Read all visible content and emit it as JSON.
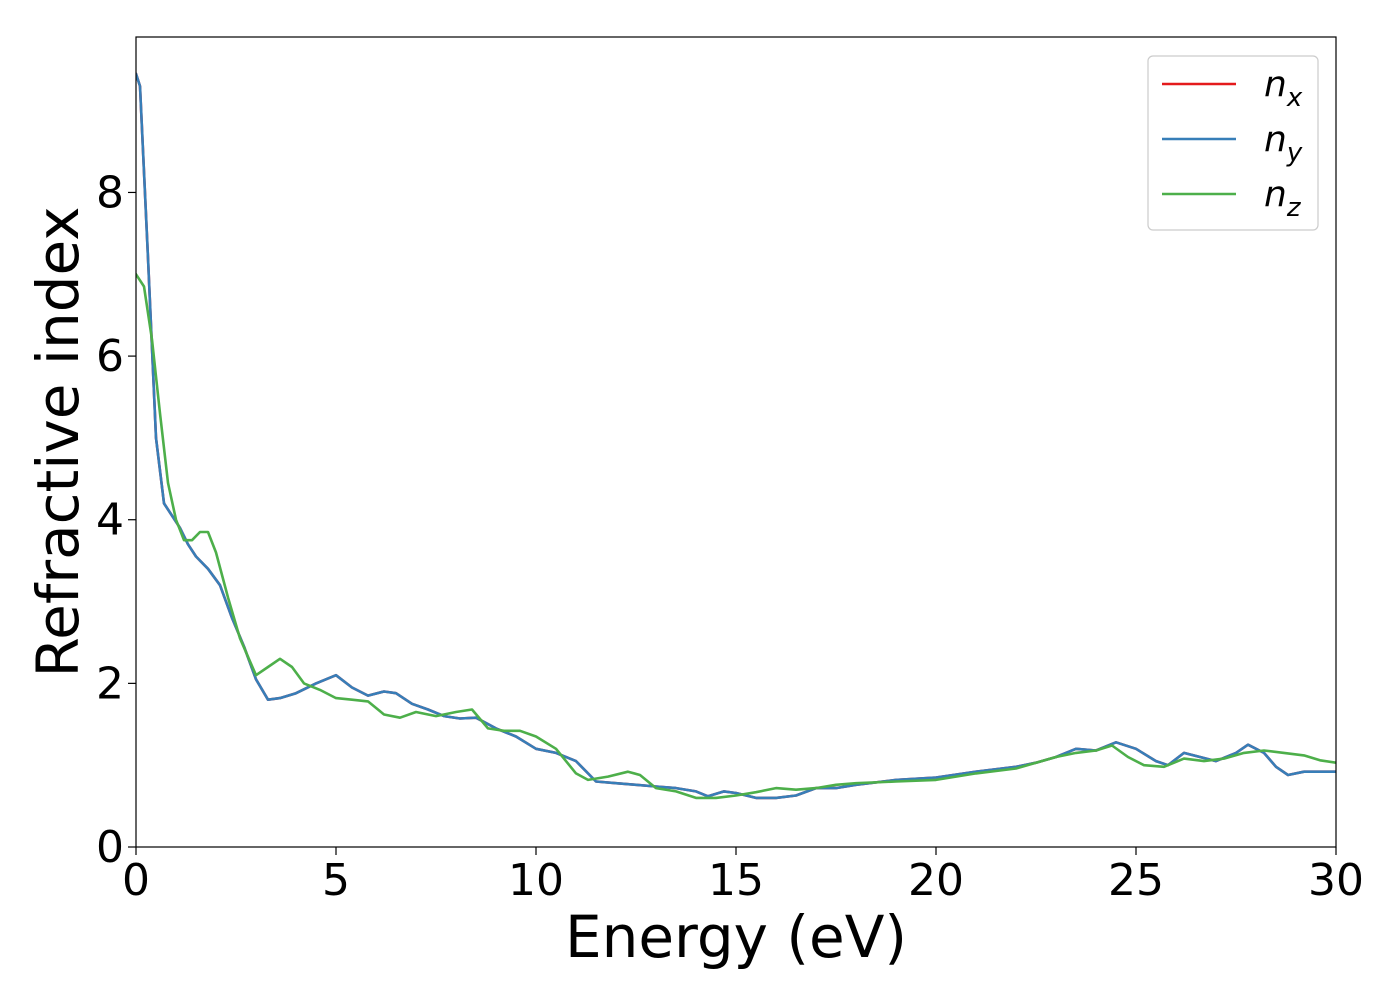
{
  "chart_data": {
    "type": "line",
    "xlabel": "Energy (eV)",
    "ylabel": "Refractive index",
    "xlim": [
      0,
      30
    ],
    "ylim": [
      0,
      9.9
    ],
    "xticks": [
      0,
      5,
      10,
      15,
      20,
      25,
      30
    ],
    "yticks": [
      0,
      2,
      4,
      6,
      8
    ],
    "grid": false,
    "legend_position": "top-right",
    "series": [
      {
        "name": "n_x",
        "label_base": "n",
        "label_sub": "x",
        "color": "#e41a1c",
        "x": [
          0,
          0.1,
          0.3,
          0.5,
          0.7,
          0.9,
          1.1,
          1.3,
          1.5,
          1.8,
          2.1,
          2.4,
          2.7,
          3.0,
          3.3,
          3.6,
          4.0,
          4.5,
          5.0,
          5.4,
          5.8,
          6.2,
          6.5,
          6.9,
          7.3,
          7.7,
          8.1,
          8.5,
          9.0,
          9.5,
          10.0,
          10.5,
          11.0,
          11.5,
          12.0,
          12.5,
          13.0,
          13.5,
          14.0,
          14.3,
          14.7,
          15.0,
          15.5,
          16.0,
          16.5,
          17.0,
          17.5,
          18.0,
          19.0,
          20.0,
          21.0,
          22.0,
          22.5,
          23.0,
          23.5,
          24.0,
          24.5,
          25.0,
          25.5,
          25.8,
          26.2,
          26.6,
          27.0,
          27.5,
          27.8,
          28.2,
          28.5,
          28.8,
          29.2,
          29.6,
          30.0
        ],
        "y": [
          9.45,
          9.3,
          7.2,
          5.0,
          4.2,
          4.05,
          3.9,
          3.7,
          3.55,
          3.4,
          3.2,
          2.8,
          2.45,
          2.05,
          1.8,
          1.82,
          1.88,
          2.0,
          2.1,
          1.95,
          1.85,
          1.9,
          1.88,
          1.75,
          1.68,
          1.6,
          1.57,
          1.58,
          1.45,
          1.35,
          1.2,
          1.15,
          1.05,
          0.8,
          0.78,
          0.76,
          0.74,
          0.72,
          0.68,
          0.62,
          0.68,
          0.66,
          0.6,
          0.6,
          0.63,
          0.72,
          0.72,
          0.76,
          0.82,
          0.85,
          0.92,
          0.98,
          1.03,
          1.1,
          1.2,
          1.18,
          1.28,
          1.2,
          1.05,
          1.0,
          1.15,
          1.1,
          1.05,
          1.15,
          1.25,
          1.15,
          0.98,
          0.88,
          0.92,
          0.92,
          0.92
        ]
      },
      {
        "name": "n_y",
        "label_base": "n",
        "label_sub": "y",
        "color": "#377eb8",
        "x": [
          0,
          0.1,
          0.3,
          0.5,
          0.7,
          0.9,
          1.1,
          1.3,
          1.5,
          1.8,
          2.1,
          2.4,
          2.7,
          3.0,
          3.3,
          3.6,
          4.0,
          4.5,
          5.0,
          5.4,
          5.8,
          6.2,
          6.5,
          6.9,
          7.3,
          7.7,
          8.1,
          8.5,
          9.0,
          9.5,
          10.0,
          10.5,
          11.0,
          11.5,
          12.0,
          12.5,
          13.0,
          13.5,
          14.0,
          14.3,
          14.7,
          15.0,
          15.5,
          16.0,
          16.5,
          17.0,
          17.5,
          18.0,
          19.0,
          20.0,
          21.0,
          22.0,
          22.5,
          23.0,
          23.5,
          24.0,
          24.5,
          25.0,
          25.5,
          25.8,
          26.2,
          26.6,
          27.0,
          27.5,
          27.8,
          28.2,
          28.5,
          28.8,
          29.2,
          29.6,
          30.0
        ],
        "y": [
          9.45,
          9.3,
          7.2,
          5.0,
          4.2,
          4.05,
          3.9,
          3.7,
          3.55,
          3.4,
          3.2,
          2.8,
          2.45,
          2.05,
          1.8,
          1.82,
          1.88,
          2.0,
          2.1,
          1.95,
          1.85,
          1.9,
          1.88,
          1.75,
          1.68,
          1.6,
          1.57,
          1.58,
          1.45,
          1.35,
          1.2,
          1.15,
          1.05,
          0.8,
          0.78,
          0.76,
          0.74,
          0.72,
          0.68,
          0.62,
          0.68,
          0.66,
          0.6,
          0.6,
          0.63,
          0.72,
          0.72,
          0.76,
          0.82,
          0.85,
          0.92,
          0.98,
          1.03,
          1.1,
          1.2,
          1.18,
          1.28,
          1.2,
          1.05,
          1.0,
          1.15,
          1.1,
          1.05,
          1.15,
          1.25,
          1.15,
          0.98,
          0.88,
          0.92,
          0.92,
          0.92
        ]
      },
      {
        "name": "n_z",
        "label_base": "n",
        "label_sub": "z",
        "color": "#4daf4a",
        "x": [
          0,
          0.2,
          0.4,
          0.6,
          0.8,
          1.0,
          1.2,
          1.4,
          1.6,
          1.8,
          2.0,
          2.3,
          2.6,
          3.0,
          3.3,
          3.6,
          3.9,
          4.2,
          4.6,
          5.0,
          5.4,
          5.8,
          6.2,
          6.6,
          7.0,
          7.5,
          8.0,
          8.4,
          8.8,
          9.2,
          9.6,
          10.0,
          10.5,
          11.0,
          11.3,
          11.8,
          12.3,
          12.6,
          13.0,
          13.5,
          14.0,
          14.5,
          15.0,
          15.5,
          16.0,
          16.5,
          17.0,
          17.5,
          18.0,
          19.0,
          20.0,
          21.0,
          22.0,
          23.0,
          23.5,
          24.0,
          24.4,
          24.8,
          25.2,
          25.7,
          26.2,
          26.7,
          27.2,
          27.7,
          28.2,
          28.7,
          29.2,
          29.6,
          30.0
        ],
        "y": [
          7.0,
          6.85,
          6.2,
          5.3,
          4.45,
          4.0,
          3.75,
          3.75,
          3.85,
          3.85,
          3.6,
          3.05,
          2.55,
          2.1,
          2.2,
          2.3,
          2.2,
          2.0,
          1.92,
          1.82,
          1.8,
          1.78,
          1.62,
          1.58,
          1.65,
          1.6,
          1.65,
          1.68,
          1.45,
          1.42,
          1.42,
          1.35,
          1.2,
          0.9,
          0.82,
          0.86,
          0.92,
          0.88,
          0.72,
          0.68,
          0.6,
          0.6,
          0.63,
          0.67,
          0.72,
          0.7,
          0.72,
          0.76,
          0.78,
          0.8,
          0.82,
          0.9,
          0.96,
          1.1,
          1.15,
          1.18,
          1.24,
          1.1,
          1.0,
          0.98,
          1.08,
          1.05,
          1.08,
          1.15,
          1.18,
          1.15,
          1.12,
          1.06,
          1.03
        ]
      }
    ]
  }
}
